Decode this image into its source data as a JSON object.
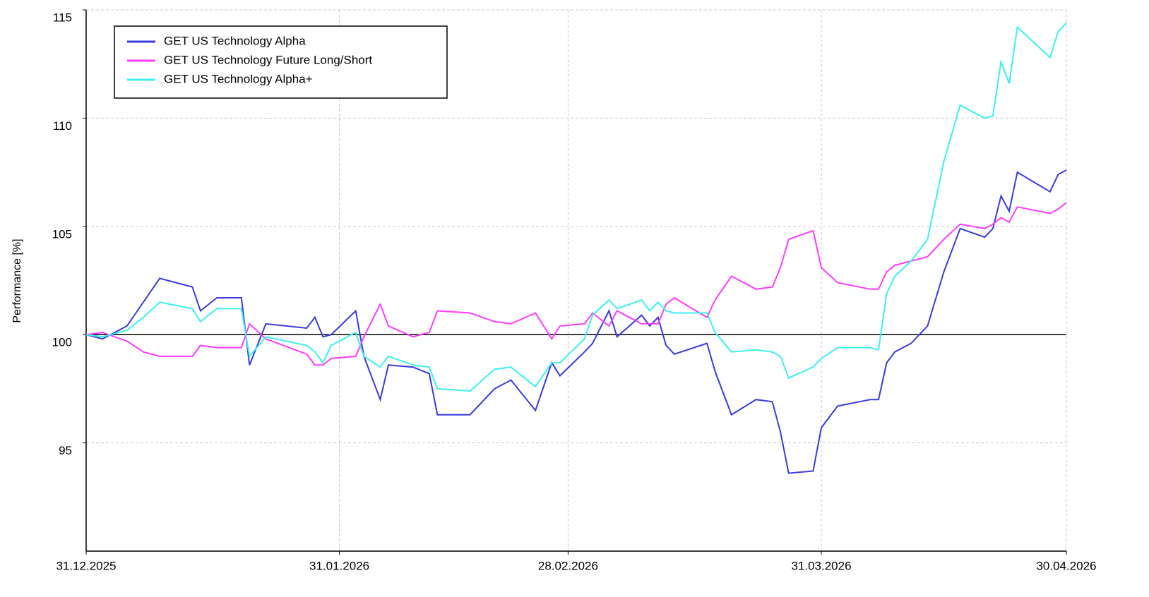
{
  "chart_data": {
    "type": "line",
    "y_label": "Performance [%]",
    "x": [
      "2025-12-31",
      "2026-01-02",
      "2026-01-05",
      "2026-01-07",
      "2026-01-09",
      "2026-01-13",
      "2026-01-14",
      "2026-01-16",
      "2026-01-19",
      "2026-01-20",
      "2026-01-22",
      "2026-01-27",
      "2026-01-28",
      "2026-01-29",
      "2026-01-30",
      "2026-02-02",
      "2026-02-03",
      "2026-02-05",
      "2026-02-06",
      "2026-02-09",
      "2026-02-11",
      "2026-02-12",
      "2026-02-16",
      "2026-02-19",
      "2026-02-21",
      "2026-02-24",
      "2026-02-26",
      "2026-02-27",
      "2026-03-02",
      "2026-03-03",
      "2026-03-05",
      "2026-03-06",
      "2026-03-09",
      "2026-03-10",
      "2026-03-11",
      "2026-03-12",
      "2026-03-13",
      "2026-03-17",
      "2026-03-18",
      "2026-03-20",
      "2026-03-23",
      "2026-03-25",
      "2026-03-26",
      "2026-03-27",
      "2026-03-30",
      "2026-03-31",
      "2026-04-02",
      "2026-04-06",
      "2026-04-07",
      "2026-04-08",
      "2026-04-09",
      "2026-04-11",
      "2026-04-13",
      "2026-04-15",
      "2026-04-17",
      "2026-04-20",
      "2026-04-21",
      "2026-04-22",
      "2026-04-23",
      "2026-04-24",
      "2026-04-28",
      "2026-04-29",
      "2026-04-30"
    ],
    "series": [
      {
        "name": "GET US Technology Alpha",
        "color": "#3a3ae0",
        "values": [
          100,
          99.8,
          100.4,
          101.5,
          102.6,
          102.2,
          101.1,
          101.7,
          101.7,
          98.6,
          100.5,
          100.3,
          100.8,
          99.9,
          100.0,
          101.1,
          99.0,
          97.0,
          98.6,
          98.5,
          98.2,
          96.3,
          96.3,
          97.5,
          97.9,
          96.5,
          98.7,
          98.1,
          99.2,
          99.6,
          101.1,
          99.9,
          100.9,
          100.4,
          100.8,
          99.5,
          99.1,
          99.6,
          98.3,
          96.3,
          97.0,
          96.9,
          95.5,
          93.6,
          93.7,
          95.7,
          96.7,
          97.0,
          97.0,
          98.7,
          99.2,
          99.6,
          100.4,
          102.9,
          104.9,
          104.5,
          104.9,
          106.4,
          105.7,
          107.5,
          106.6,
          107.4,
          107.6
        ]
      },
      {
        "name": "GET US Technology Future Long/Short",
        "color": "#ff3cff",
        "values": [
          100,
          100.1,
          99.7,
          99.2,
          99.0,
          99.0,
          99.5,
          99.4,
          99.4,
          100.5,
          99.8,
          99.1,
          98.6,
          98.6,
          98.9,
          99.0,
          99.9,
          101.4,
          100.4,
          99.9,
          100.1,
          101.1,
          101.0,
          100.6,
          100.5,
          101.0,
          99.8,
          100.4,
          100.5,
          101.0,
          100.4,
          101.1,
          100.5,
          100.5,
          100.5,
          101.4,
          101.7,
          100.8,
          101.6,
          102.7,
          102.1,
          102.2,
          103.1,
          104.4,
          104.8,
          103.1,
          102.4,
          102.1,
          102.1,
          102.9,
          103.2,
          103.4,
          103.6,
          104.4,
          105.1,
          104.9,
          105.1,
          105.4,
          105.2,
          105.9,
          105.6,
          105.8,
          106.1
        ]
      },
      {
        "name": "GET US Technology Alpha+",
        "color": "#3cf0f0",
        "values": [
          100,
          99.9,
          100.2,
          100.8,
          101.5,
          101.2,
          100.6,
          101.2,
          101.2,
          99.0,
          99.9,
          99.5,
          99.2,
          98.7,
          99.5,
          100.1,
          99.0,
          98.5,
          99.0,
          98.6,
          98.5,
          97.5,
          97.4,
          98.4,
          98.5,
          97.6,
          98.7,
          98.7,
          99.8,
          100.9,
          101.6,
          101.2,
          101.6,
          101.1,
          101.5,
          101.1,
          101.0,
          101.0,
          100.1,
          99.2,
          99.3,
          99.2,
          99.0,
          98.0,
          98.5,
          98.9,
          99.4,
          99.4,
          99.3,
          101.9,
          102.7,
          103.4,
          104.4,
          108.0,
          110.6,
          110.0,
          110.1,
          112.6,
          111.6,
          114.2,
          112.8,
          114.0,
          114.4
        ]
      }
    ],
    "xlim": [
      "2025-12-31",
      "2026-04-30"
    ],
    "xticks": [
      {
        "value": "2025-12-31",
        "label": "31.12.2025"
      },
      {
        "value": "2026-01-31",
        "label": "31.01.2026"
      },
      {
        "value": "2026-02-28",
        "label": "28.02.2026"
      },
      {
        "value": "2026-03-31",
        "label": "31.03.2026"
      },
      {
        "value": "2026-04-30",
        "label": "30.04.2026"
      }
    ],
    "ylim": [
      90,
      115
    ],
    "yticks": [
      95,
      100,
      105,
      110,
      115
    ],
    "baseline": 100,
    "grid": true,
    "legend": "top-left"
  }
}
